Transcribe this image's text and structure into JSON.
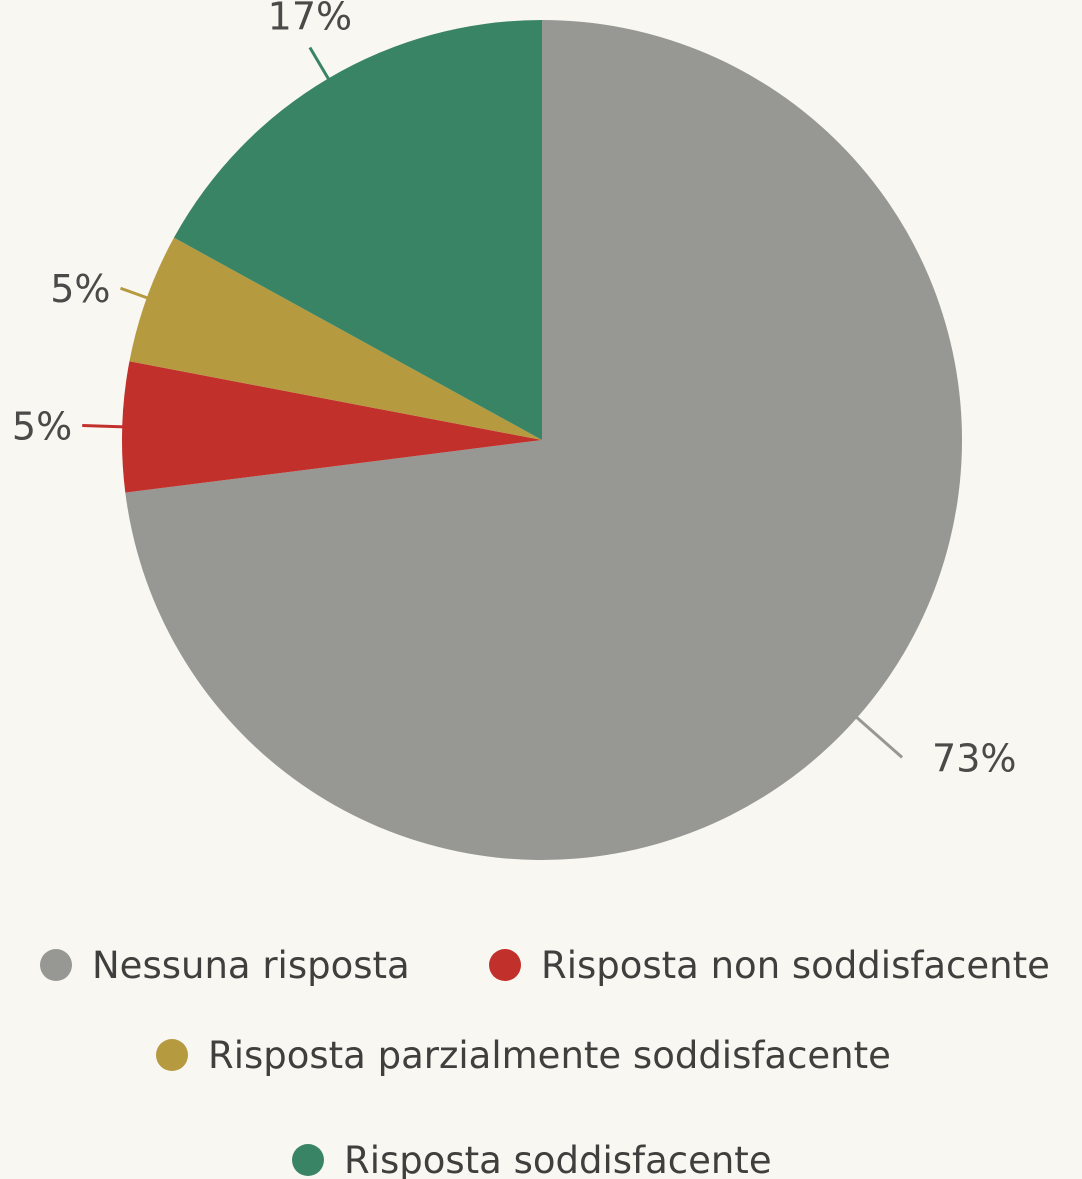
{
  "chart_data": {
    "type": "pie",
    "title": "",
    "start_angle_deg": 0,
    "direction": "clockwise",
    "slices": [
      {
        "label": "Nessuna risposta",
        "value": 73,
        "display": "73%",
        "color": "#979893"
      },
      {
        "label": "Risposta non soddisfacente",
        "value": 5,
        "display": "5%",
        "color": "#c2302c"
      },
      {
        "label": "Risposta parzialmente soddisfacente",
        "value": 5,
        "display": "5%",
        "color": "#b59a3f"
      },
      {
        "label": "Risposta soddisfacente",
        "value": 17,
        "display": "17%",
        "color": "#3a8466"
      }
    ],
    "legend": {
      "placement": "bottom",
      "items": [
        {
          "label": "Nessuna risposta",
          "color": "#979893"
        },
        {
          "label": "Risposta non soddisfacente",
          "color": "#c2302c"
        },
        {
          "label": "Risposta parzialmente soddisfacente",
          "color": "#b59a3f"
        },
        {
          "label": "Risposta soddisfacente",
          "color": "#3a8466"
        }
      ]
    }
  }
}
